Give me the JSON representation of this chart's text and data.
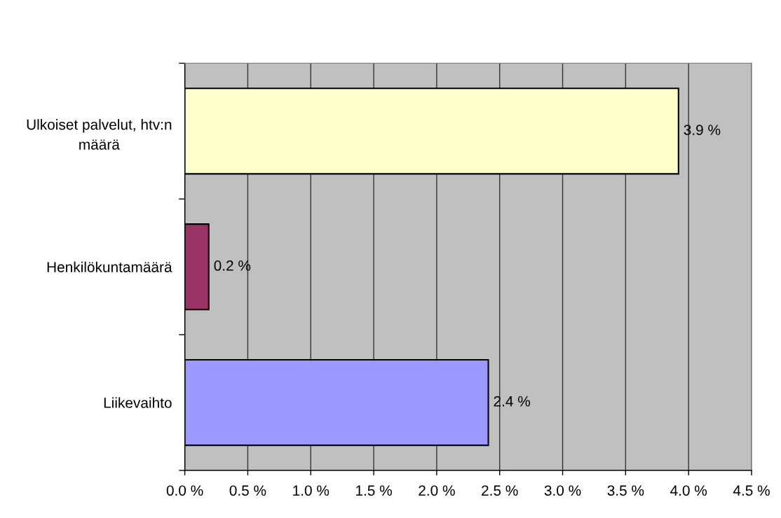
{
  "chart_data": {
    "type": "bar",
    "orientation": "horizontal",
    "categories": [
      "Ulkoiset palvelut, htv:n\nmäärä",
      "Henkilökuntamäärä",
      "Liikevaihto"
    ],
    "values": [
      3.92,
      0.19,
      2.41
    ],
    "colors": [
      "#ffffcc",
      "#993366",
      "#9999ff"
    ],
    "value_labels": [
      "3.9 %",
      "0.2 %",
      "2.4 %"
    ],
    "xlim": [
      0,
      4.5
    ],
    "xticks": [
      {
        "value": 0,
        "label": "0.0 %"
      },
      {
        "value": 0.5,
        "label": "0.5 %"
      },
      {
        "value": 1,
        "label": "1.0 %"
      },
      {
        "value": 1.5,
        "label": "1.5 %"
      },
      {
        "value": 2,
        "label": "2.0 %"
      },
      {
        "value": 2.5,
        "label": "2.5 %"
      },
      {
        "value": 3,
        "label": "3.0 %"
      },
      {
        "value": 3.5,
        "label": "3.5 %"
      },
      {
        "value": 4,
        "label": "4.0 %"
      },
      {
        "value": 4.5,
        "label": "4.5 %"
      }
    ],
    "grid": "x"
  }
}
